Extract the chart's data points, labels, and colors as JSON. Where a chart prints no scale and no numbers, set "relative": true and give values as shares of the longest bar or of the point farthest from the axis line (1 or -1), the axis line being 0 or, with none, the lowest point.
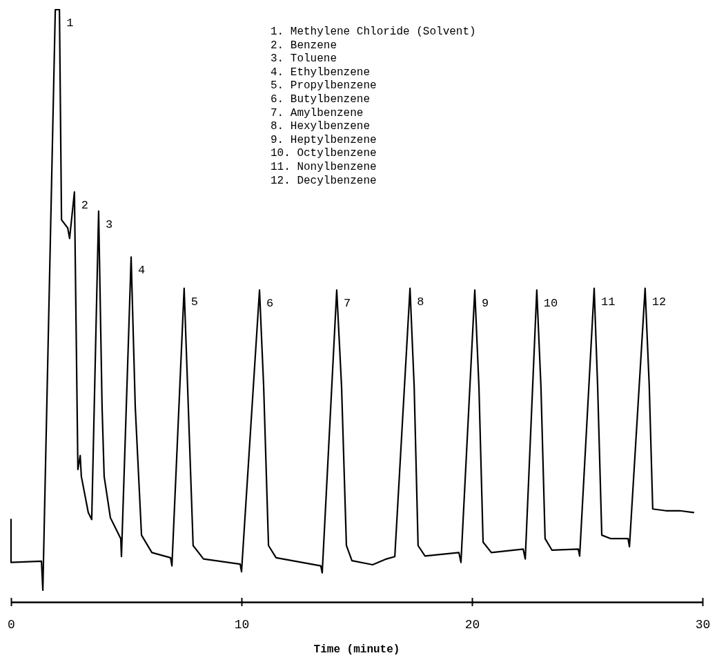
{
  "chart_data": {
    "type": "line",
    "relative": true,
    "xlabel": "Time (minute)",
    "xlim": [
      0,
      30
    ],
    "xticks": [
      0,
      10,
      20,
      30
    ],
    "marker": "none",
    "line_style": "solid",
    "series": [
      {
        "color": "#000000",
        "x": [
          0,
          0,
          1.32,
          1.38,
          1.92,
          2.1,
          2.19,
          2.46,
          2.54,
          2.75,
          2.9,
          3.0,
          3.05,
          3.35,
          3.5,
          3.8,
          3.95,
          4.04,
          4.31,
          4.76,
          4.79,
          5.21,
          5.39,
          5.66,
          6.11,
          6.92,
          6.98,
          7.51,
          7.66,
          7.9,
          8.35,
          9.94,
          10.0,
          10.78,
          10.96,
          11.17,
          11.5,
          13.44,
          13.5,
          14.13,
          14.34,
          14.55,
          14.79,
          15.69,
          16.29,
          16.65,
          17.31,
          17.49,
          17.66,
          17.96,
          19.43,
          19.52,
          20.12,
          20.3,
          20.48,
          20.84,
          22.22,
          22.31,
          22.81,
          22.99,
          23.17,
          23.47,
          24.61,
          24.67,
          25.3,
          25.45,
          25.63,
          26.02,
          26.77,
          26.83,
          27.51,
          27.69,
          27.84,
          28.41,
          29.01,
          29.61
        ],
        "values": [
          0.122,
          0.048,
          0.05,
          0,
          1.0,
          1.0,
          0.638,
          0.624,
          0.606,
          0.686,
          0.208,
          0.232,
          0.196,
          0.134,
          0.122,
          0.653,
          0.315,
          0.196,
          0.125,
          0.089,
          0.058,
          0.574,
          0.315,
          0.095,
          0.065,
          0.056,
          0.042,
          0.52,
          0.351,
          0.077,
          0.054,
          0.045,
          0.032,
          0.517,
          0.351,
          0.077,
          0.056,
          0.042,
          0.03,
          0.517,
          0.351,
          0.077,
          0.051,
          0.044,
          0.054,
          0.058,
          0.52,
          0.351,
          0.077,
          0.059,
          0.065,
          0.048,
          0.517,
          0.351,
          0.083,
          0.065,
          0.071,
          0.054,
          0.517,
          0.351,
          0.089,
          0.069,
          0.071,
          0.059,
          0.52,
          0.351,
          0.095,
          0.089,
          0.089,
          0.075,
          0.52,
          0.351,
          0.14,
          0.137,
          0.137,
          0.134
        ]
      }
    ],
    "annotations": [
      {
        "text": "1",
        "x": 2.1,
        "y": 1.0
      },
      {
        "text": "2",
        "x": 2.75,
        "y": 0.686
      },
      {
        "text": "3",
        "x": 3.8,
        "y": 0.653
      },
      {
        "text": "4",
        "x": 5.21,
        "y": 0.574
      },
      {
        "text": "5",
        "x": 7.51,
        "y": 0.52
      },
      {
        "text": "6",
        "x": 10.78,
        "y": 0.517
      },
      {
        "text": "7",
        "x": 14.13,
        "y": 0.517
      },
      {
        "text": "8",
        "x": 17.31,
        "y": 0.52
      },
      {
        "text": "9",
        "x": 20.12,
        "y": 0.517
      },
      {
        "text": "10",
        "x": 22.81,
        "y": 0.517
      },
      {
        "text": "11",
        "x": 25.3,
        "y": 0.52
      },
      {
        "text": "12",
        "x": 27.51,
        "y": 0.52
      },
      "1. Methylene Chloride (Solvent)",
      "2. Benzene",
      "3. Toluene",
      "4. Ethylbenzene",
      "5. Propylbenzene",
      "6. Butylbenzene",
      "7. Amylbenzene",
      "8. Hexylbenzene",
      "9. Heptylbenzene",
      "10. Octylbenzene",
      "11. Nonylbenzene",
      "12. Decylbenzene"
    ]
  }
}
